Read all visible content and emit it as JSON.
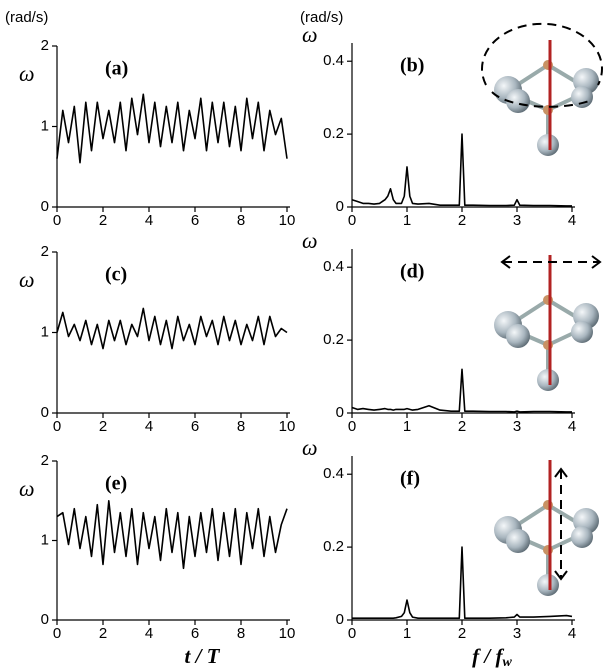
{
  "chart_data": [
    {
      "type": "line",
      "label": "(a)",
      "unit": "(rad/s)",
      "ylabel": "ω",
      "color": "#000000",
      "x": [
        0,
        0.25,
        0.5,
        0.75,
        1,
        1.25,
        1.5,
        1.75,
        2,
        2.25,
        2.5,
        2.75,
        3,
        3.25,
        3.5,
        3.75,
        4,
        4.25,
        4.5,
        4.75,
        5,
        5.25,
        5.5,
        5.75,
        6,
        6.25,
        6.5,
        6.75,
        7,
        7.25,
        7.5,
        7.75,
        8,
        8.25,
        8.5,
        8.75,
        9,
        9.25,
        9.5,
        9.75,
        10
      ],
      "values": [
        0.6,
        1.2,
        0.8,
        1.25,
        0.55,
        1.3,
        0.7,
        1.3,
        0.85,
        1.2,
        0.8,
        1.3,
        0.7,
        1.35,
        0.9,
        1.4,
        0.8,
        1.3,
        0.75,
        1.25,
        0.8,
        1.3,
        0.7,
        1.2,
        0.85,
        1.35,
        0.7,
        1.3,
        0.8,
        1.3,
        0.75,
        1.25,
        0.7,
        1.35,
        0.85,
        1.3,
        0.7,
        1.2,
        0.9,
        1.1,
        0.6
      ],
      "xlim": [
        0,
        10
      ],
      "ylim": [
        0,
        2
      ],
      "xticks": [
        0,
        2,
        4,
        6,
        8,
        10
      ],
      "yticks": [
        0,
        1,
        2
      ]
    },
    {
      "type": "line",
      "label": "(b)",
      "unit": "(rad/s)",
      "ylabel": "ω",
      "color": "#000000",
      "x": [
        0,
        0.1,
        0.2,
        0.3,
        0.4,
        0.5,
        0.6,
        0.65,
        0.7,
        0.75,
        0.8,
        0.9,
        0.95,
        1.0,
        1.05,
        1.1,
        1.2,
        1.4,
        1.6,
        1.8,
        1.95,
        2.0,
        2.05,
        2.2,
        2.5,
        2.8,
        2.95,
        3.0,
        3.05,
        3.3,
        3.6,
        3.9,
        4.0
      ],
      "values": [
        0.02,
        0.015,
        0.01,
        0.01,
        0.008,
        0.01,
        0.02,
        0.03,
        0.05,
        0.02,
        0.01,
        0.01,
        0.03,
        0.11,
        0.03,
        0.01,
        0.008,
        0.01,
        0.005,
        0.005,
        0.005,
        0.2,
        0.005,
        0.005,
        0.004,
        0.004,
        0.005,
        0.02,
        0.005,
        0.004,
        0.004,
        0.003,
        0.003
      ],
      "xlim": [
        0,
        4
      ],
      "ylim": [
        0,
        0.45
      ],
      "xticks": [
        0,
        1,
        2,
        3,
        4
      ],
      "yticks": [
        0,
        0.2,
        0.4
      ]
    },
    {
      "type": "line",
      "label": "(c)",
      "ylabel": "ω",
      "color": "#000000",
      "x": [
        0,
        0.25,
        0.5,
        0.75,
        1,
        1.25,
        1.5,
        1.75,
        2,
        2.25,
        2.5,
        2.75,
        3,
        3.25,
        3.5,
        3.75,
        4,
        4.25,
        4.5,
        4.75,
        5,
        5.25,
        5.5,
        5.75,
        6,
        6.25,
        6.5,
        6.75,
        7,
        7.25,
        7.5,
        7.75,
        8,
        8.25,
        8.5,
        8.75,
        9,
        9.25,
        9.5,
        9.75,
        10
      ],
      "values": [
        1.0,
        1.25,
        0.95,
        1.1,
        0.9,
        1.15,
        0.85,
        1.1,
        0.8,
        1.15,
        0.9,
        1.15,
        0.85,
        1.1,
        0.95,
        1.3,
        0.9,
        1.2,
        0.85,
        1.15,
        0.8,
        1.2,
        0.9,
        1.1,
        0.85,
        1.2,
        0.95,
        1.15,
        0.85,
        1.2,
        0.9,
        1.15,
        0.85,
        1.1,
        0.9,
        1.2,
        0.85,
        1.2,
        0.95,
        1.05,
        1.0
      ],
      "xlim": [
        0,
        10
      ],
      "ylim": [
        0,
        2
      ],
      "xticks": [
        0,
        2,
        4,
        6,
        8,
        10
      ],
      "yticks": [
        0,
        1,
        2
      ]
    },
    {
      "type": "line",
      "label": "(d)",
      "ylabel": "ω",
      "color": "#000000",
      "x": [
        0,
        0.1,
        0.2,
        0.3,
        0.4,
        0.5,
        0.6,
        0.65,
        0.7,
        0.75,
        0.8,
        0.9,
        0.95,
        1.0,
        1.05,
        1.1,
        1.2,
        1.4,
        1.6,
        1.8,
        1.95,
        2.0,
        2.05,
        2.2,
        2.5,
        2.8,
        2.95,
        3.0,
        3.05,
        3.3,
        3.6,
        3.9,
        4.0
      ],
      "values": [
        0.015,
        0.01,
        0.012,
        0.01,
        0.008,
        0.01,
        0.012,
        0.01,
        0.01,
        0.008,
        0.01,
        0.01,
        0.01,
        0.012,
        0.01,
        0.008,
        0.01,
        0.02,
        0.008,
        0.005,
        0.005,
        0.12,
        0.005,
        0.005,
        0.004,
        0.004,
        0.003,
        0.005,
        0.003,
        0.004,
        0.004,
        0.003,
        0.003
      ],
      "xlim": [
        0,
        4
      ],
      "ylim": [
        0,
        0.45
      ],
      "xticks": [
        0,
        1,
        2,
        3,
        4
      ],
      "yticks": [
        0,
        0.2,
        0.4
      ]
    },
    {
      "type": "line",
      "label": "(e)",
      "ylabel": "ω",
      "xlabel": "t / T",
      "color": "#000000",
      "x": [
        0,
        0.25,
        0.5,
        0.75,
        1,
        1.25,
        1.5,
        1.75,
        2,
        2.25,
        2.5,
        2.75,
        3,
        3.25,
        3.5,
        3.75,
        4,
        4.25,
        4.5,
        4.75,
        5,
        5.25,
        5.5,
        5.75,
        6,
        6.25,
        6.5,
        6.75,
        7,
        7.25,
        7.5,
        7.75,
        8,
        8.25,
        8.5,
        8.75,
        9,
        9.25,
        9.5,
        9.75,
        10
      ],
      "values": [
        1.3,
        1.35,
        0.95,
        1.4,
        0.9,
        1.3,
        0.8,
        1.45,
        0.7,
        1.5,
        0.85,
        1.35,
        0.8,
        1.4,
        0.7,
        1.35,
        0.9,
        1.3,
        0.75,
        1.4,
        0.85,
        1.35,
        0.65,
        1.3,
        0.8,
        1.35,
        0.85,
        1.4,
        0.75,
        1.35,
        0.8,
        1.4,
        0.7,
        1.35,
        0.9,
        1.4,
        0.8,
        1.3,
        0.85,
        1.2,
        1.4
      ],
      "xlim": [
        0,
        10
      ],
      "ylim": [
        0,
        2
      ],
      "xticks": [
        0,
        2,
        4,
        6,
        8,
        10
      ],
      "yticks": [
        0,
        1,
        2
      ]
    },
    {
      "type": "line",
      "label": "(f)",
      "ylabel": "ω",
      "xlabel": "f / f",
      "xlabel_sub": "w",
      "color": "#000000",
      "x": [
        0,
        0.1,
        0.2,
        0.3,
        0.4,
        0.5,
        0.6,
        0.65,
        0.7,
        0.75,
        0.8,
        0.9,
        0.95,
        1.0,
        1.05,
        1.1,
        1.2,
        1.4,
        1.6,
        1.8,
        1.95,
        2.0,
        2.05,
        2.2,
        2.5,
        2.8,
        2.95,
        3.0,
        3.05,
        3.3,
        3.6,
        3.9,
        4.0
      ],
      "values": [
        0.005,
        0.005,
        0.005,
        0.005,
        0.005,
        0.005,
        0.005,
        0.005,
        0.005,
        0.005,
        0.006,
        0.01,
        0.02,
        0.055,
        0.02,
        0.008,
        0.005,
        0.005,
        0.005,
        0.005,
        0.005,
        0.2,
        0.005,
        0.005,
        0.005,
        0.006,
        0.008,
        0.015,
        0.008,
        0.008,
        0.01,
        0.012,
        0.01
      ],
      "xlim": [
        0,
        4
      ],
      "ylim": [
        0,
        0.45
      ],
      "xticks": [
        0,
        1,
        2,
        3,
        4
      ],
      "yticks": [
        0,
        0.2,
        0.4
      ]
    }
  ]
}
